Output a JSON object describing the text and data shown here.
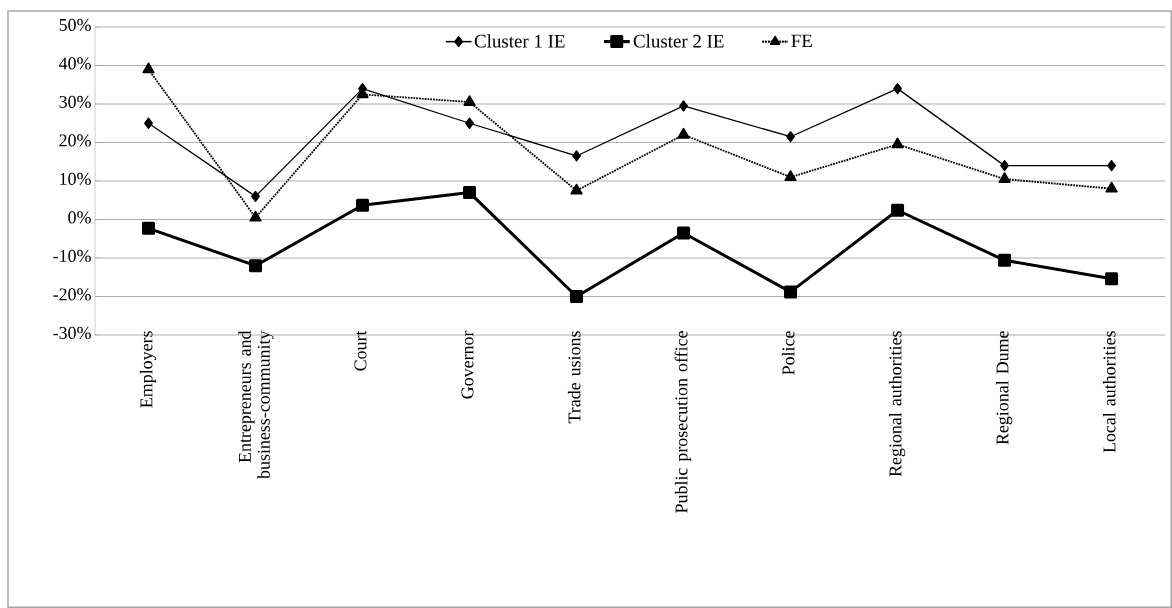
{
  "chart_data": {
    "type": "line",
    "categories": [
      "Employers",
      "Entrepreneurs and business-community",
      "Court",
      "Governor",
      "Trade usions",
      "Public prosecution office",
      "Police",
      "Regional authorities",
      "Regional Dume",
      "Local authorities"
    ],
    "series": [
      {
        "name": "Cluster 1 IE",
        "color": "#000000",
        "marker": "diamond",
        "line_style": "solid",
        "values": [
          25,
          6,
          34,
          25,
          16.5,
          29.5,
          21.5,
          34,
          14,
          14
        ]
      },
      {
        "name": "Cluster 2 IE",
        "color": "#000000",
        "marker": "square",
        "line_style": "solid",
        "values": [
          -2.3,
          -12,
          3.7,
          7,
          -20,
          -3.5,
          -18.8,
          2.4,
          -10.6,
          -15.4
        ]
      },
      {
        "name": "FE",
        "color": "#000000",
        "marker": "triangle",
        "line_style": "dotted",
        "values": [
          39,
          0.5,
          32.5,
          30.5,
          7.5,
          22,
          11,
          19.5,
          10.5,
          8
        ]
      }
    ],
    "ylim": [
      -30,
      50
    ],
    "yticks": [
      {
        "value": -30,
        "label": "-30%"
      },
      {
        "value": -20,
        "label": "-20%"
      },
      {
        "value": -10,
        "label": "-10%"
      },
      {
        "value": 0,
        "label": "0%"
      },
      {
        "value": 10,
        "label": "10%"
      },
      {
        "value": 20,
        "label": "20%"
      },
      {
        "value": 30,
        "label": "30%"
      },
      {
        "value": 40,
        "label": "40%"
      },
      {
        "value": 50,
        "label": "50%"
      }
    ],
    "grid": "y",
    "legend": "top"
  }
}
